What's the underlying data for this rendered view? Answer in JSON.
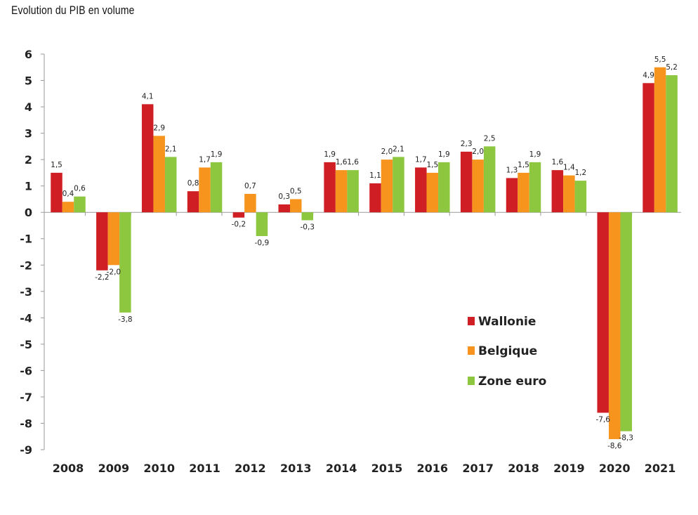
{
  "title": "Evolution du PIB en volume",
  "chart_data": {
    "type": "bar",
    "title": "Evolution du PIB en volume",
    "xlabel": "",
    "ylabel": "",
    "ylim": [
      -9,
      6
    ],
    "yticks": [
      6,
      5,
      4,
      3,
      2,
      1,
      0,
      -1,
      -2,
      -3,
      -4,
      -5,
      -6,
      -7,
      -8,
      -9
    ],
    "grid": false,
    "legend_position": "bottom-right",
    "categories": [
      "2008",
      "2009",
      "2010",
      "2011",
      "2012",
      "2013",
      "2014",
      "2015",
      "2016",
      "2017",
      "2018",
      "2019",
      "2020",
      "2021"
    ],
    "series": [
      {
        "name": "Wallonie",
        "color": "#d01f24",
        "values": [
          1.5,
          -2.2,
          4.1,
          0.8,
          -0.2,
          0.3,
          1.9,
          1.1,
          1.7,
          2.3,
          1.3,
          1.6,
          -7.6,
          4.9
        ],
        "labels": [
          "1,5",
          "-2,2",
          "4,1",
          "0,8",
          "-0,2",
          "0,3",
          "1,9",
          "1,1",
          "1,7",
          "2,3",
          "1,3",
          "1,6",
          "-7,6",
          "4,9"
        ]
      },
      {
        "name": "Belgique",
        "color": "#f7941d",
        "values": [
          0.4,
          -2.0,
          2.9,
          1.7,
          0.7,
          0.5,
          1.6,
          2.0,
          1.5,
          2.0,
          1.5,
          1.4,
          -8.6,
          5.5
        ],
        "labels": [
          "0,4",
          "-2,0",
          "2,9",
          "1,7",
          "0,7",
          "0,5",
          "1,6",
          "2,0",
          "1,5",
          "2,0",
          "1,5",
          "1,4",
          "-8,6",
          "5,5"
        ]
      },
      {
        "name": "Zone euro",
        "color": "#8dc63f",
        "values": [
          0.6,
          -3.8,
          2.1,
          1.9,
          -0.9,
          -0.3,
          1.6,
          2.1,
          1.9,
          2.5,
          1.9,
          1.2,
          -8.3,
          5.2
        ],
        "labels": [
          "0,6",
          "-3,8",
          "2,1",
          "1,9",
          "-0,9",
          "-0,3",
          "1,6",
          "2,1",
          "1,9",
          "2,5",
          "1,9",
          "1,2",
          "-8,3",
          "5,2"
        ]
      }
    ]
  }
}
